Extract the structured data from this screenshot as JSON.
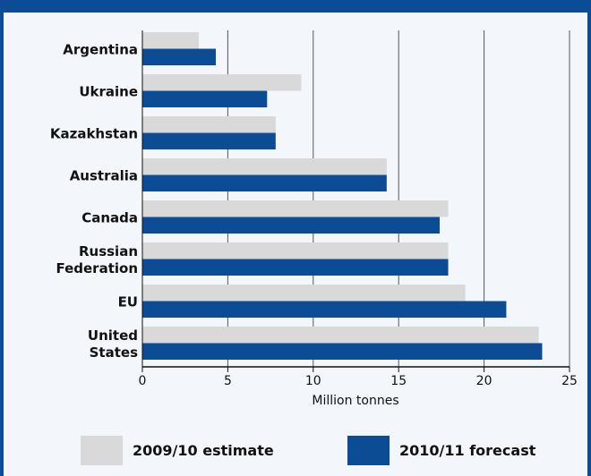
{
  "chart_data": {
    "type": "bar",
    "orientation": "horizontal",
    "x_axis_label": "Million tonnes",
    "categories": [
      "Argentina",
      "Ukraine",
      "Kazakhstan",
      "Australia",
      "Canada",
      "Russian Federation",
      "EU",
      "United States"
    ],
    "series": [
      {
        "name": "2009/10 estimate",
        "color": "#d9d9d9",
        "values": [
          3.3,
          9.3,
          7.8,
          14.3,
          17.9,
          17.9,
          18.9,
          23.2
        ]
      },
      {
        "name": "2010/11 forecast",
        "color": "#0b4c94",
        "values": [
          4.3,
          7.3,
          7.8,
          14.3,
          17.4,
          17.9,
          21.3,
          23.4
        ]
      }
    ],
    "xlim": [
      0,
      25
    ],
    "xticks": [
      0,
      5,
      10,
      15,
      20,
      25
    ],
    "grid": true
  }
}
